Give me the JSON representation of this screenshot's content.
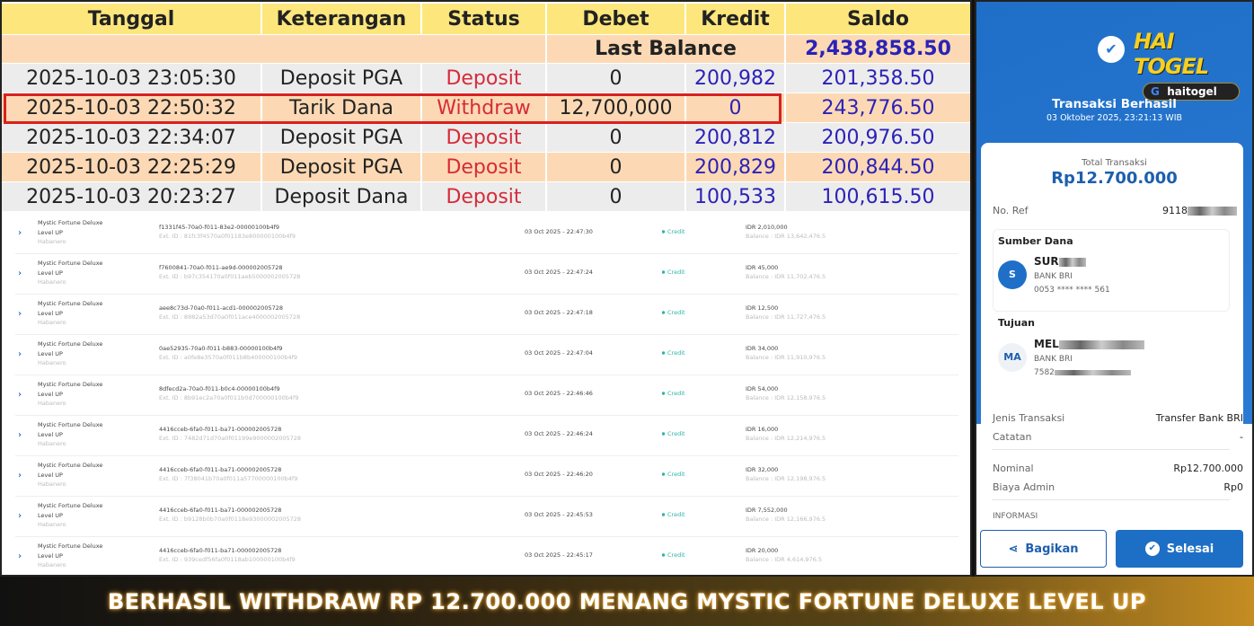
{
  "bank_table": {
    "headers": [
      "Tanggal",
      "Keterangan",
      "Status",
      "Debet",
      "Kredit",
      "Saldo"
    ],
    "last_balance_label": "Last Balance",
    "last_balance": "2,438,858.50",
    "rows": [
      {
        "tanggal": "2025-10-03 23:05:30",
        "keterangan": "Deposit PGA",
        "status": "Deposit",
        "debet": "0",
        "kredit": "200,982",
        "saldo": "201,358.50"
      },
      {
        "tanggal": "2025-10-03 22:50:32",
        "keterangan": "Tarik Dana",
        "status": "Withdraw",
        "debet": "12,700,000",
        "kredit": "0",
        "saldo": "243,776.50",
        "highlighted": true
      },
      {
        "tanggal": "2025-10-03 22:34:07",
        "keterangan": "Deposit PGA",
        "status": "Deposit",
        "debet": "0",
        "kredit": "200,812",
        "saldo": "200,976.50"
      },
      {
        "tanggal": "2025-10-03 22:25:29",
        "keterangan": "Deposit PGA",
        "status": "Deposit",
        "debet": "0",
        "kredit": "200,829",
        "saldo": "200,844.50"
      },
      {
        "tanggal": "2025-10-03 20:23:27",
        "keterangan": "Deposit Dana",
        "status": "Deposit",
        "debet": "0",
        "kredit": "100,533",
        "saldo": "100,615.50"
      }
    ]
  },
  "game_history": {
    "rows": [
      {
        "game": "Mystic Fortune Deluxe",
        "level": "Level UP",
        "provider": "Habanero",
        "id": "f1331f45-70a0-f011-83e2-00000100b4f9",
        "ext": "Ext. ID : 81fc3f4570a0f01183e800000100b4f9",
        "date": "03 Oct 2025 - 22:47:30",
        "type": "Credit",
        "amount": "IDR 2,010,000",
        "balance": "Balance : IDR 13,642,476.5"
      },
      {
        "game": "Mystic Fortune Deluxe",
        "level": "Level UP",
        "provider": "Habanero",
        "id": "f7600841-70a0-f011-ae9d-000002005728",
        "ext": "Ext. ID : b97c354170a0f011aeb5000002005728",
        "date": "03 Oct 2025 - 22:47:24",
        "type": "Credit",
        "amount": "IDR 45,000",
        "balance": "Balance : IDR 11,702,476.5"
      },
      {
        "game": "Mystic Fortune Deluxe",
        "level": "Level UP",
        "provider": "Habanero",
        "id": "aee8c73d-70a0-f011-acd1-000002005728",
        "ext": "Ext. ID : 8982a53d70a0f011ace4000002005728",
        "date": "03 Oct 2025 - 22:47:18",
        "type": "Credit",
        "amount": "IDR 12,500",
        "balance": "Balance : IDR 11,727,476.5"
      },
      {
        "game": "Mystic Fortune Deluxe",
        "level": "Level UP",
        "provider": "Habanero",
        "id": "0ae52935-70a0-f011-b883-00000100b4f9",
        "ext": "Ext. ID : a0fe8e3570a0f011b8b400000100b4f9",
        "date": "03 Oct 2025 - 22:47:04",
        "type": "Credit",
        "amount": "IDR 34,000",
        "balance": "Balance : IDR 11,910,976.5"
      },
      {
        "game": "Mystic Fortune Deluxe",
        "level": "Level UP",
        "provider": "Habanero",
        "id": "8dfecd2a-70a0-f011-b0c4-00000100b4f9",
        "ext": "Ext. ID : 8b91ec2a70a0f011b0d700000100b4f9",
        "date": "03 Oct 2025 - 22:46:46",
        "type": "Credit",
        "amount": "IDR 54,000",
        "balance": "Balance : IDR 12,158,976.5"
      },
      {
        "game": "Mystic Fortune Deluxe",
        "level": "Level UP",
        "provider": "Habanero",
        "id": "4416cceb-6fa0-f011-ba71-000002005728",
        "ext": "Ext. ID : 7482d71d70a0f01199e9000002005728",
        "date": "03 Oct 2025 - 22:46:24",
        "type": "Credit",
        "amount": "IDR 16,000",
        "balance": "Balance : IDR 12,214,976.5"
      },
      {
        "game": "Mystic Fortune Deluxe",
        "level": "Level UP",
        "provider": "Habanero",
        "id": "4416cceb-6fa0-f011-ba71-000002005728",
        "ext": "Ext. ID : 7f38041b70a0f011a57700000100b4f9",
        "date": "03 Oct 2025 - 22:46:20",
        "type": "Credit",
        "amount": "IDR 32,000",
        "balance": "Balance : IDR 12,198,976.5"
      },
      {
        "game": "Mystic Fortune Deluxe",
        "level": "Level UP",
        "provider": "Habanero",
        "id": "4416cceb-6fa0-f011-ba71-000002005728",
        "ext": "Ext. ID : b9128b0b70a0f0118e93000002005728",
        "date": "03 Oct 2025 - 22:45:53",
        "type": "Credit",
        "amount": "IDR 7,552,000",
        "balance": "Balance : IDR 12,166,976.5"
      },
      {
        "game": "Mystic Fortune Deluxe",
        "level": "Level UP",
        "provider": "Habanero",
        "id": "4416cceb-6fa0-f011-ba71-000002005728",
        "ext": "Ext. ID : 939cedf56fa0f0118ab100000100b4f9",
        "date": "03 Oct 2025 - 22:45:17",
        "type": "Credit",
        "amount": "IDR 20,000",
        "balance": "Balance : IDR 4,614,976.5"
      }
    ]
  },
  "receipt": {
    "logo_text": "HAI TOGEL",
    "logo_search": "haitogel",
    "title": "Transaksi Berhasil",
    "datetime": "03 Oktober 2025, 23:21:13 WIB",
    "total_label": "Total Transaksi",
    "total": "Rp12.700.000",
    "ref_label": "No. Ref",
    "ref_value": "9118",
    "source_label": "Sumber Dana",
    "source_initial": "S",
    "source_name": "SUR",
    "source_bank": "BANK BRI",
    "source_account": "0053 **** **** 561",
    "dest_label": "Tujuan",
    "dest_initial": "MA",
    "dest_name": "MEL",
    "dest_bank": "BANK BRI",
    "dest_account": "7582",
    "type_label": "Jenis Transaksi",
    "type_value": "Transfer Bank BRI",
    "note_label": "Catatan",
    "note_value": "-",
    "nominal_label": "Nominal",
    "nominal_value": "Rp12.700.000",
    "fee_label": "Biaya Admin",
    "fee_value": "Rp0",
    "info_label": "INFORMASI",
    "share_label": "Bagikan",
    "done_label": "Selesai",
    "accent": "#1d5fae"
  },
  "banner": {
    "text": "BERHASIL WITHDRAW RP 12.700.000 MENANG MYSTIC FORTUNE DELUXE LEVEL UP"
  }
}
